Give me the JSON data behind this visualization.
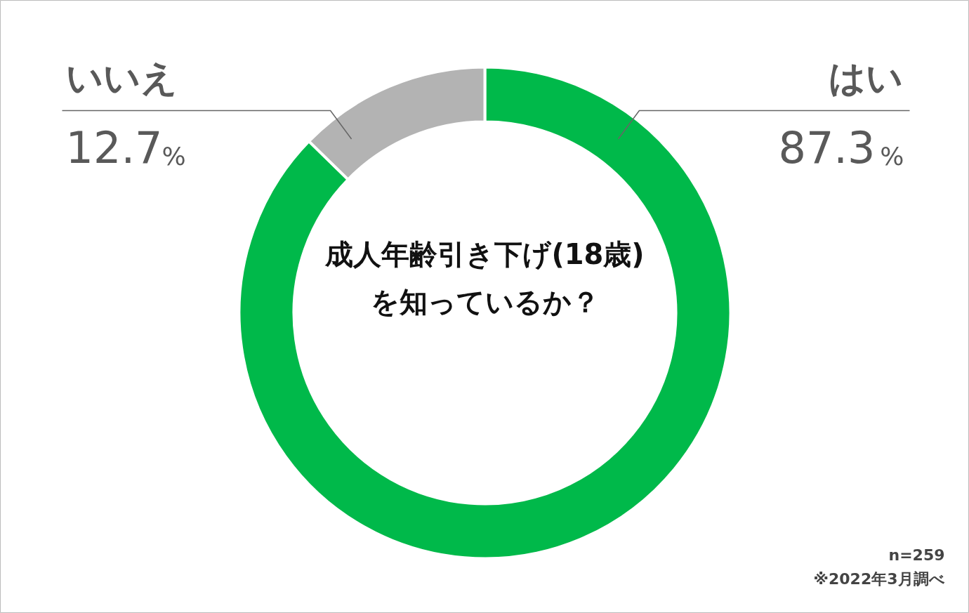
{
  "chart_data": {
    "type": "donut",
    "title": "成人年齢引き下げ(18歳)を知っているか？",
    "categories": [
      "はい",
      "いいえ"
    ],
    "values": [
      87.3,
      12.7
    ],
    "colors": [
      "#00b94a",
      "#b3b3b3"
    ],
    "value_labels": [
      "87.3%",
      "12.7%"
    ],
    "annotations": [
      "n=259",
      "※2022年3月調べ"
    ]
  }
}
